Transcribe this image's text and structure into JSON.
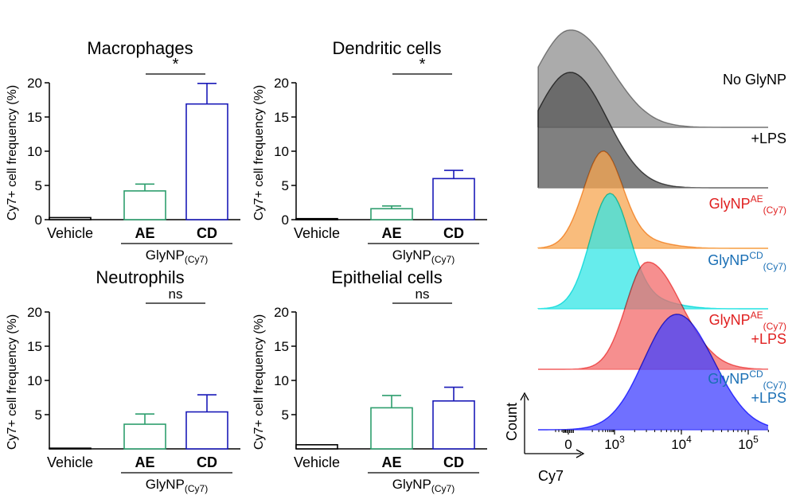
{
  "chart_data": [
    {
      "type": "bar",
      "title": "Macrophages",
      "ylabel": "Cy7+ cell frequency (%)",
      "ylim": [
        0,
        20
      ],
      "yticks": [
        0,
        5,
        10,
        15,
        20
      ],
      "categories": [
        "Vehicle",
        "AE",
        "CD"
      ],
      "values": [
        0.3,
        4.2,
        16.9
      ],
      "errors": [
        0.05,
        1.0,
        3.0
      ],
      "colors": [
        "#000000",
        "#2e9e6e",
        "#1a1ab8"
      ],
      "group_label": "GlyNP",
      "group_label_sub": "(Cy7)",
      "significance": "*"
    },
    {
      "type": "bar",
      "title": "Dendritic cells",
      "ylabel": "Cy7+ cell frequency (%)",
      "ylim": [
        0,
        20
      ],
      "yticks": [
        0,
        5,
        10,
        15,
        20
      ],
      "categories": [
        "Vehicle",
        "AE",
        "CD"
      ],
      "values": [
        0.15,
        1.6,
        6.0
      ],
      "errors": [
        0.05,
        0.4,
        1.2
      ],
      "colors": [
        "#000000",
        "#2e9e6e",
        "#1a1ab8"
      ],
      "group_label": "GlyNP",
      "group_label_sub": "(Cy7)",
      "significance": "*"
    },
    {
      "type": "bar",
      "title": "Neutrophils",
      "ylabel": "Cy7+ cell frequency (%)",
      "ylim": [
        0,
        20
      ],
      "yticks": [
        5,
        10,
        15,
        20
      ],
      "categories": [
        "Vehicle",
        "AE",
        "CD"
      ],
      "values": [
        0.1,
        3.6,
        5.4
      ],
      "errors": [
        0.0,
        1.5,
        2.5
      ],
      "colors": [
        "#000000",
        "#2e9e6e",
        "#1a1ab8"
      ],
      "group_label": "GlyNP",
      "group_label_sub": "(Cy7)",
      "significance": "ns"
    },
    {
      "type": "bar",
      "title": "Epithelial cells",
      "ylabel": "Cy7+ cell frequency (%)",
      "ylim": [
        0,
        20
      ],
      "yticks": [
        5,
        10,
        15,
        20
      ],
      "categories": [
        "Vehicle",
        "AE",
        "CD"
      ],
      "values": [
        0.6,
        6.0,
        7.0
      ],
      "errors": [
        0.0,
        1.8,
        2.0
      ],
      "colors": [
        "#000000",
        "#2e9e6e",
        "#1a1ab8"
      ],
      "group_label": "GlyNP",
      "group_label_sub": "(Cy7)",
      "significance": "ns"
    },
    {
      "type": "area",
      "xlabel": "Cy7",
      "ylabel": "Count",
      "x_scale": "biexponential",
      "xticks": [
        "0",
        "10",
        "10",
        "10"
      ],
      "xtick_exponents": [
        "",
        "3",
        "4",
        "5"
      ],
      "series": [
        {
          "label": "No GlyNP",
          "color": "#8f8f8f",
          "label_color": "#000000",
          "peak_x": 0
        },
        {
          "label": "+LPS",
          "color": "#555555",
          "label_color": "#000000",
          "peak_x": 0
        },
        {
          "label": "GlyNP",
          "label_sup": "AE",
          "label_sub": "(Cy7)",
          "color": "#f7a550",
          "label_color": "#e02020",
          "peak_x": 300
        },
        {
          "label": "GlyNP",
          "label_sup": "CD",
          "label_sub": "(Cy7)",
          "color": "#33e6e6",
          "label_color": "#1a6fb5",
          "peak_x": 600
        },
        {
          "label": "GlyNP",
          "label_sup": "AE",
          "label_sub": "(Cy7)",
          "label2": "+LPS",
          "color": "#f36a6a",
          "label_color": "#e02020",
          "peak_x": 3000
        },
        {
          "label": "GlyNP",
          "label_sup": "CD",
          "label_sub": "(Cy7)",
          "label2": "+LPS",
          "color": "#4040ff",
          "label_color": "#1a6fb5",
          "peak_x": 8000
        }
      ]
    }
  ]
}
